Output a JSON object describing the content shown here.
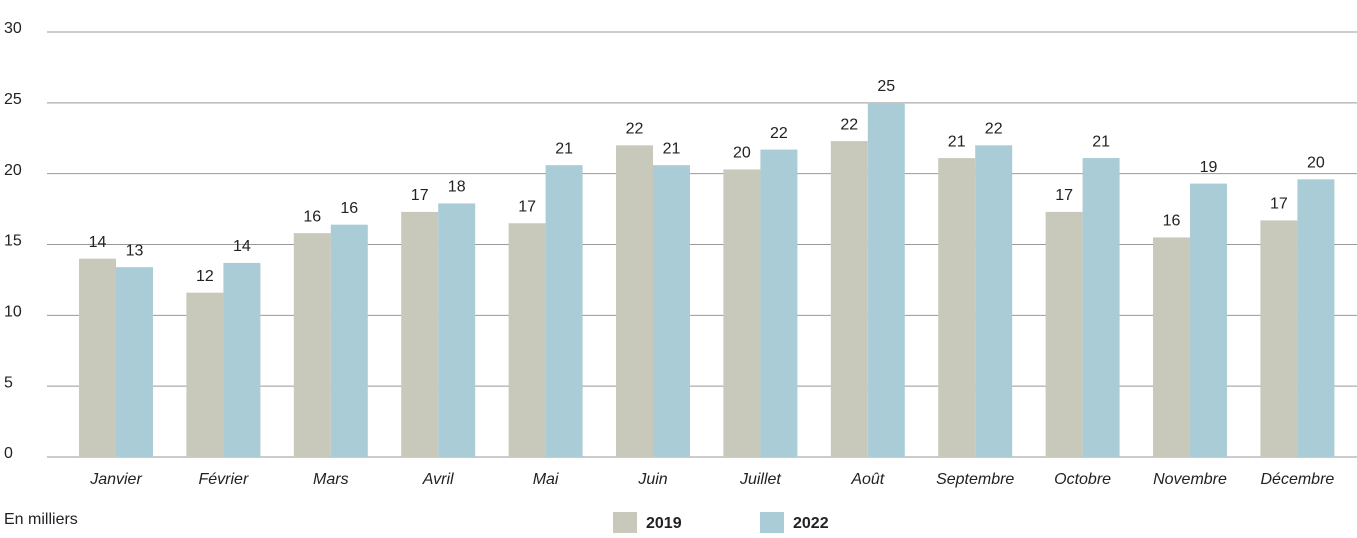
{
  "chart_data": {
    "type": "bar",
    "categories": [
      "Janvier",
      "Février",
      "Mars",
      "Avril",
      "Mai",
      "Juin",
      "Juillet",
      "Août",
      "Septembre",
      "Octobre",
      "Novembre",
      "Décembre"
    ],
    "series": [
      {
        "name": "2019",
        "color": "#c9c9bb",
        "values": [
          14.0,
          11.6,
          15.8,
          17.3,
          16.5,
          22.0,
          20.3,
          22.3,
          21.1,
          17.3,
          15.5,
          16.7
        ],
        "value_labels": [
          "14",
          "12",
          "16",
          "17",
          "17",
          "22",
          "20",
          "22",
          "21",
          "17",
          "16",
          "17"
        ]
      },
      {
        "name": "2022",
        "color": "#a9ccd6",
        "values": [
          13.4,
          13.7,
          16.4,
          17.9,
          20.6,
          20.6,
          21.7,
          25.0,
          22.0,
          21.1,
          19.3,
          19.6
        ],
        "value_labels": [
          "13",
          "14",
          "16",
          "18",
          "21",
          "21",
          "22",
          "25",
          "22",
          "21",
          "19",
          "20"
        ]
      }
    ],
    "ylim": [
      0,
      30
    ],
    "yticks": [
      0,
      5,
      10,
      15,
      20,
      25,
      30
    ],
    "grid": true,
    "note": "En milliers",
    "legend": "bottom"
  }
}
